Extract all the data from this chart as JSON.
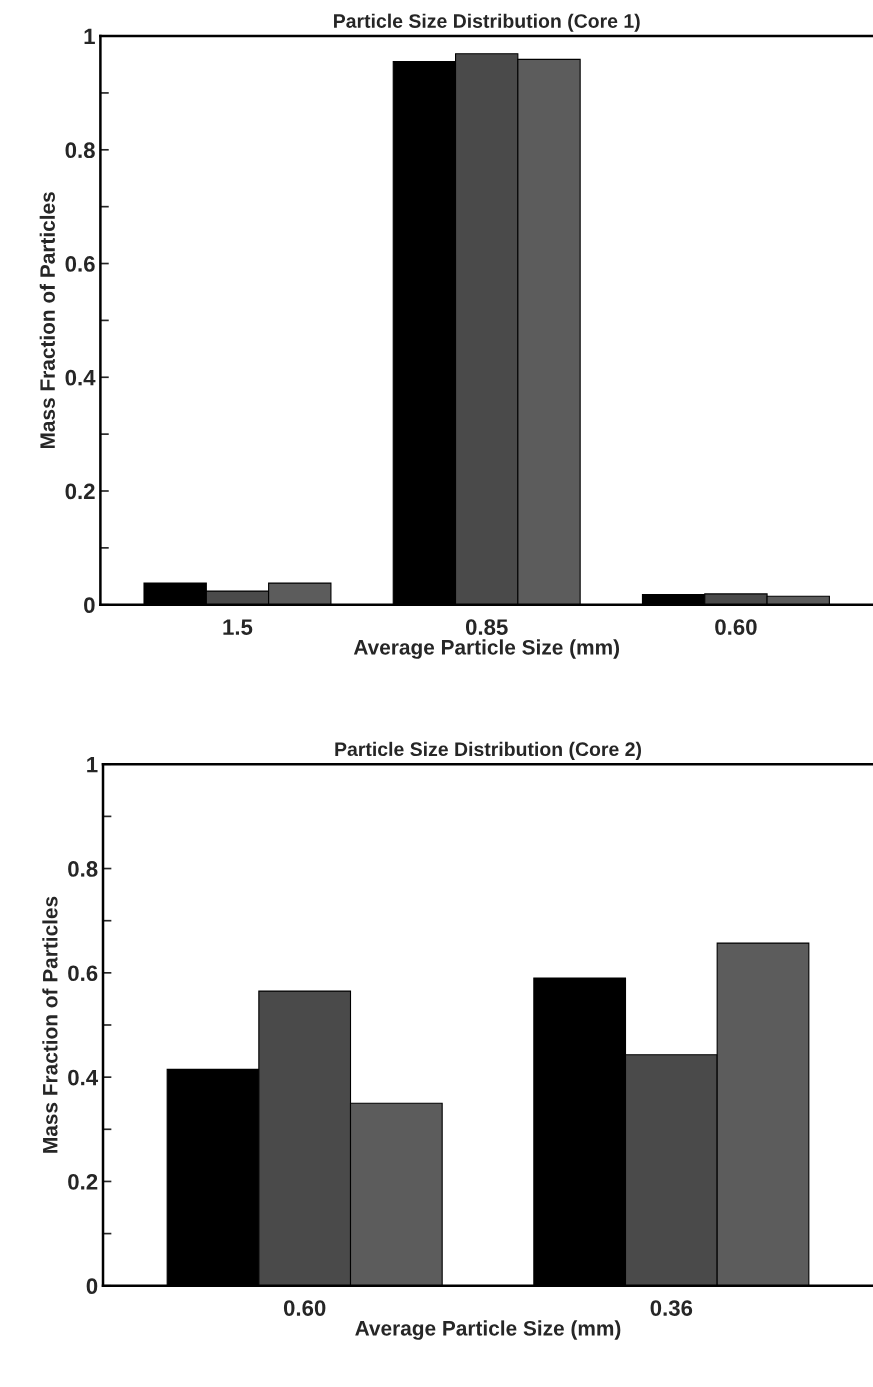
{
  "chart_data": [
    {
      "type": "bar",
      "title": "Particle Size Distribution (Core 1)",
      "xlabel": "Average Particle Size (mm)",
      "ylabel": "Mass Fraction of Particles",
      "categories": [
        "1.5",
        "0.85",
        "0.60"
      ],
      "series": [
        {
          "color": "#000000",
          "values": [
            0.038,
            0.955,
            0.018
          ]
        },
        {
          "color": "#4a4a4a",
          "values": [
            0.024,
            0.969,
            0.019
          ]
        },
        {
          "color": "#5c5c5c",
          "values": [
            0.038,
            0.959,
            0.015
          ]
        }
      ],
      "ylim": [
        0,
        1
      ],
      "yticks": [
        {
          "value": 0,
          "label": "0"
        },
        {
          "value": 0.1,
          "label": null
        },
        0.2,
        {
          "value": 0.3,
          "label": null
        },
        0.4,
        {
          "value": 0.5,
          "label": null
        },
        0.6,
        {
          "value": 0.7,
          "label": null
        },
        0.8,
        {
          "value": 0.9,
          "label": null
        },
        {
          "value": 1,
          "label": "1"
        }
      ],
      "grid": false
    },
    {
      "type": "bar",
      "title": "Particle Size Distribution (Core 2)",
      "xlabel": "Average Particle Size (mm)",
      "ylabel": "Mass Fraction of Particles",
      "categories": [
        "0.60",
        "0.36"
      ],
      "series": [
        {
          "color": "#000000",
          "values": [
            0.415,
            0.59
          ]
        },
        {
          "color": "#4a4a4a",
          "values": [
            0.565,
            0.443
          ]
        },
        {
          "color": "#5c5c5c",
          "values": [
            0.35,
            0.657
          ]
        }
      ],
      "ylim": [
        0,
        1
      ],
      "yticks": [
        {
          "value": 0,
          "label": "0"
        },
        {
          "value": 0.1,
          "label": null
        },
        0.2,
        {
          "value": 0.3,
          "label": null
        },
        0.4,
        {
          "value": 0.5,
          "label": null
        },
        0.6,
        {
          "value": 0.7,
          "label": null
        },
        0.8,
        {
          "value": 0.9,
          "label": null
        },
        {
          "value": 1,
          "label": "1"
        }
      ],
      "grid": false
    }
  ]
}
